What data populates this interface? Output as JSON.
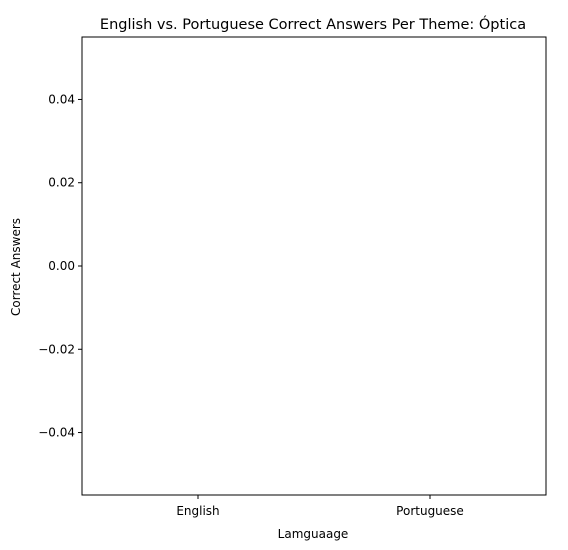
{
  "chart_data": {
    "type": "bar",
    "title": "English vs. Portuguese Correct Answers Per Theme: Óptica",
    "xlabel": "Lamguaage",
    "ylabel": "Correct Answers",
    "categories": [
      "English",
      "Portuguese"
    ],
    "values": [
      0,
      0
    ],
    "ylim": [
      -0.055,
      0.055
    ],
    "yticks": [
      {
        "value": 0.04,
        "label": "0.04"
      },
      {
        "value": 0.02,
        "label": "0.02"
      },
      {
        "value": 0.0,
        "label": "0.00"
      },
      {
        "value": -0.02,
        "label": "−0.02"
      },
      {
        "value": -0.04,
        "label": "−0.04"
      }
    ],
    "grid": false,
    "legend": "none"
  },
  "colors": {
    "axis": "#000000",
    "background": "#ffffff",
    "bar": "#1f77b4"
  }
}
